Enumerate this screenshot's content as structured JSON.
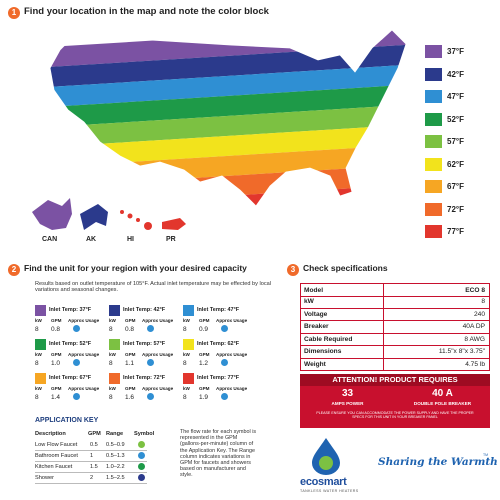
{
  "section1": {
    "number": "1",
    "title": "Find your location in the map and note the color block",
    "legend": [
      {
        "label": "37°F",
        "color": "#7b52a3"
      },
      {
        "label": "42°F",
        "color": "#2b3a8c"
      },
      {
        "label": "47°F",
        "color": "#2f8fd3"
      },
      {
        "label": "52°F",
        "color": "#1e9a48"
      },
      {
        "label": "57°F",
        "color": "#7cc142"
      },
      {
        "label": "62°F",
        "color": "#f2e31c"
      },
      {
        "label": "67°F",
        "color": "#f6a623"
      },
      {
        "label": "72°F",
        "color": "#f06a2a"
      },
      {
        "label": "77°F",
        "color": "#e2362d"
      }
    ],
    "insets": [
      "CAN",
      "AK",
      "HI",
      "PR"
    ]
  },
  "section2": {
    "number": "2",
    "title": "Find the unit for your region with your desired capacity",
    "note": "Results based on outlet temperature of 105°F. Actual inlet temperature may be effected by local variations and seasonal changes.",
    "card_headers": [
      "kW",
      "GPM",
      "Approx Usage"
    ],
    "cards": [
      {
        "label": "Inlet Temp: 37°F",
        "color": "#7b52a3",
        "kw": "8",
        "gpm": "0.8"
      },
      {
        "label": "Inlet Temp: 42°F",
        "color": "#2b3a8c",
        "kw": "8",
        "gpm": "0.8"
      },
      {
        "label": "Inlet Temp: 47°F",
        "color": "#2f8fd3",
        "kw": "8",
        "gpm": "0.9"
      },
      {
        "label": "Inlet Temp: 52°F",
        "color": "#1e9a48",
        "kw": "8",
        "gpm": "1.0"
      },
      {
        "label": "Inlet Temp: 57°F",
        "color": "#7cc142",
        "kw": "8",
        "gpm": "1.1"
      },
      {
        "label": "Inlet Temp: 62°F",
        "color": "#f2e31c",
        "kw": "8",
        "gpm": "1.2"
      },
      {
        "label": "Inlet Temp: 67°F",
        "color": "#f6a623",
        "kw": "8",
        "gpm": "1.4"
      },
      {
        "label": "Inlet Temp: 72°F",
        "color": "#f06a2a",
        "kw": "8",
        "gpm": "1.6"
      },
      {
        "label": "Inlet Temp: 77°F",
        "color": "#e2362d",
        "kw": "8",
        "gpm": "1.9"
      }
    ],
    "application_key": {
      "title": "APPLICATION KEY",
      "columns": [
        "Description",
        "GPM",
        "Range",
        "Symbol"
      ],
      "rows": [
        [
          "Low Flow Faucet",
          "0.5",
          "0.5–0.9"
        ],
        [
          "Bathroom Faucet",
          "1",
          "0.5–1.3"
        ],
        [
          "Kitchen Faucet",
          "1.5",
          "1.0–2.2"
        ],
        [
          "Shower",
          "2",
          "1.5–2.5"
        ]
      ],
      "note": "The flow rate for each symbol is represented in the GPM (gallons-per-minute) column of the Application Key. The Range column indicates variations in GPM for faucets and showers based on manufacturer and style."
    }
  },
  "section3": {
    "number": "3",
    "title": "Check specifications",
    "specs": [
      [
        "Model",
        "ECO 8"
      ],
      [
        "kW",
        "8"
      ],
      [
        "Voltage",
        "240"
      ],
      [
        "Breaker",
        "40A DP"
      ],
      [
        "Cable Required",
        "8 AWG"
      ],
      [
        "Dimensions",
        "11.5\"x 8\"x 3.75\""
      ],
      [
        "Weight",
        "4.75 lb"
      ]
    ],
    "attention": {
      "title": "ATTENTION! PRODUCT REQUIRES",
      "items": [
        {
          "value": "33",
          "label": "AMPS POWER"
        },
        {
          "value": "40 A",
          "label": "DOUBLE POLE BREAKER"
        }
      ],
      "note": "PLEASE ENSURE YOU CAN ACCOMMODATE THE POWER SUPPLY AND HAVE THE PROPER SPECS FOR THIS UNIT IN YOUR BREAKER PANEL"
    }
  },
  "brand": {
    "name": "ecosmart",
    "tagline": "TANKLESS WATER HEATERS",
    "slogan": "Sharing the Warmth",
    "tm": "TM"
  }
}
